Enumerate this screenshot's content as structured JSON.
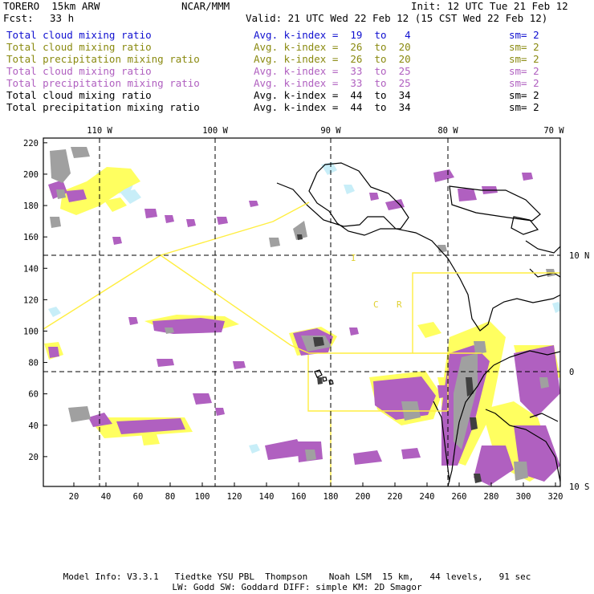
{
  "header": {
    "model": "TORERO  15km ARW",
    "org": "NCAR/MMM",
    "init": "Init: 12 UTC Tue 21 Feb 12",
    "fcst_label": "Fcst:",
    "fcst_value": "33 h",
    "valid": "Valid: 21 UTC Wed 22 Feb 12 (15 CST Wed 22 Feb 12)"
  },
  "legend_rows": [
    {
      "field": "Total cloud mixing ratio",
      "index": "Avg. k-index =  19  to   4",
      "sm": "sm= 2",
      "color": "#1010d0"
    },
    {
      "field": "Total cloud mixing ratio",
      "index": "Avg. k-index =  26  to  20",
      "sm": "sm= 2",
      "color": "#8a8a10"
    },
    {
      "field": "Total precipitation mixing ratio",
      "index": "Avg. k-index =  26  to  20",
      "sm": "sm= 2",
      "color": "#8a8a10"
    },
    {
      "field": "Total cloud mixing ratio",
      "index": "Avg. k-index =  33  to  25",
      "sm": "sm= 2",
      "color": "#b060c0"
    },
    {
      "field": "Total precipitation mixing ratio",
      "index": "Avg. k-index =  33  to  25",
      "sm": "sm= 2",
      "color": "#b060c0"
    },
    {
      "field": "Total cloud mixing ratio",
      "index": "Avg. k-index =  44  to  34",
      "sm": "sm= 2",
      "color": "#000000"
    },
    {
      "field": "Total precipitation mixing ratio",
      "index": "Avg. k-index =  44  to  34",
      "sm": "sm= 2",
      "color": "#000000"
    }
  ],
  "map": {
    "x_ticks": [
      "20",
      "40",
      "60",
      "80",
      "100",
      "120",
      "140",
      "160",
      "180",
      "200",
      "220",
      "240",
      "260",
      "280",
      "300",
      "320"
    ],
    "y_ticks": [
      "20",
      "40",
      "60",
      "80",
      "100",
      "120",
      "140",
      "160",
      "180",
      "200",
      "220"
    ],
    "lon_labels": [
      "110 W",
      "100 W",
      "90 W",
      "80 W",
      "70 W"
    ],
    "lat_labels": [
      "10 N",
      "0",
      "10 S"
    ],
    "box_letters": [
      "I",
      "C",
      "R"
    ],
    "colors": {
      "cloud_light": "#c8eef8",
      "yellow": "#ffff60",
      "purple": "#b060c0",
      "gray": "#a0a0a0",
      "dark": "#404040",
      "box": "#ffee40"
    }
  },
  "footer": {
    "line1": "Model Info: V3.3.1   Tiedtke YSU PBL  Thompson    Noah LSM  15 km,   44 levels,   91 sec",
    "line2": "LW: Godd SW: Goddard DIFF: simple KM: 2D Smagor"
  }
}
